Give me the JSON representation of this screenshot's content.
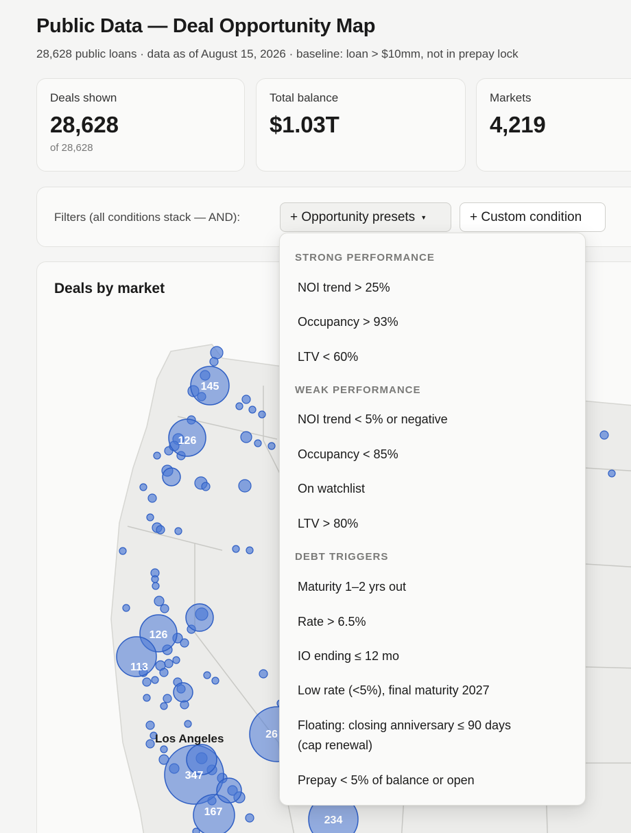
{
  "header": {
    "title": "Public Data — Deal Opportunity Map",
    "subtitle": "28,628 public loans · data as of August 15, 2026 · baseline: loan > $10mm, not in prepay lock"
  },
  "stats": [
    {
      "label": "Deals shown",
      "value": "28,628",
      "sub": "of 28,628"
    },
    {
      "label": "Total balance",
      "value": "$1.03T"
    },
    {
      "label": "Markets",
      "value": "4,219"
    }
  ],
  "filters": {
    "label": "Filters (all conditions stack — AND):",
    "presets_button": "+ Opportunity presets",
    "custom_button": "+ Custom condition"
  },
  "presets_menu": {
    "groups": [
      {
        "heading": "STRONG PERFORMANCE",
        "items": [
          "NOI trend > 25%",
          "Occupancy > 93%",
          "LTV < 60%"
        ]
      },
      {
        "heading": "WEAK PERFORMANCE",
        "items": [
          "NOI trend < 5% or negative",
          "Occupancy < 85%",
          "On watchlist",
          "LTV > 80%"
        ]
      },
      {
        "heading": "DEBT TRIGGERS",
        "items": [
          "Maturity 1–2 yrs out",
          "Rate > 6.5%",
          "IO ending ≤ 12 mo",
          "Low rate (<5%), final maturity 2027",
          "Floating: closing anniversary ≤ 90 days",
          "(cap renewal)",
          "Prepay < 5% of balance or open"
        ]
      }
    ]
  },
  "map": {
    "title": "Deals by market",
    "city_labels": [
      "Los Angeles"
    ],
    "bubble_labels": [
      "145",
      "126",
      "126",
      "113",
      "26",
      "347",
      "167",
      "234"
    ],
    "colors": {
      "bubble_fill": "#4a78d6",
      "bubble_stroke": "#2f5fc4",
      "land": "#ececea",
      "border": "#c9c9c5"
    }
  }
}
